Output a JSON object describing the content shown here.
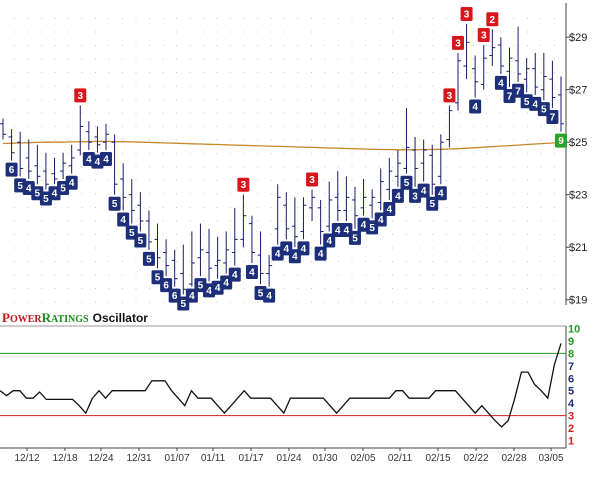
{
  "chart_data": {
    "type": "candlestick",
    "price_panel": {
      "y_ticks": [
        "$19",
        "$21",
        "$23",
        "$25",
        "$27",
        "$29"
      ],
      "ylim": [
        18.8,
        30.3
      ],
      "bars": [
        {
          "h": 25.9,
          "l": 25.1,
          "o": 25.7,
          "c": 25.3
        },
        {
          "h": 25.5,
          "l": 24.3,
          "o": 25.2,
          "c": 24.6,
          "label": "6",
          "kind": "down"
        },
        {
          "h": 25.4,
          "l": 23.7,
          "o": 25.0,
          "c": 24.0,
          "label": "5",
          "kind": "down"
        },
        {
          "h": 25.1,
          "l": 23.6,
          "o": 24.4,
          "c": 23.9,
          "label": "4",
          "kind": "down"
        },
        {
          "h": 24.9,
          "l": 23.4,
          "o": 24.1,
          "c": 23.7,
          "label": "5",
          "kind": "down"
        },
        {
          "h": 24.6,
          "l": 23.2,
          "o": 23.9,
          "c": 23.4,
          "label": "5",
          "kind": "down"
        },
        {
          "h": 24.4,
          "l": 23.4,
          "o": 23.8,
          "c": 23.6,
          "label": "4",
          "kind": "down"
        },
        {
          "h": 24.6,
          "l": 23.6,
          "o": 23.9,
          "c": 24.2,
          "label": "5",
          "kind": "down"
        },
        {
          "h": 24.9,
          "l": 23.8,
          "o": 24.1,
          "c": 24.4,
          "label": "4",
          "kind": "down"
        },
        {
          "h": 26.4,
          "l": 24.5,
          "o": 24.7,
          "c": 25.6,
          "label": "3",
          "kind": "up"
        },
        {
          "h": 25.8,
          "l": 24.7,
          "o": 25.4,
          "c": 25.0,
          "label": "4",
          "kind": "down"
        },
        {
          "h": 25.6,
          "l": 24.6,
          "o": 25.2,
          "c": 24.9,
          "label": "4",
          "kind": "down"
        },
        {
          "h": 25.7,
          "l": 24.7,
          "o": 25.0,
          "c": 25.3,
          "label": "4",
          "kind": "down"
        },
        {
          "h": 25.3,
          "l": 23.0,
          "o": 25.0,
          "c": 23.4,
          "label": "5",
          "kind": "down"
        },
        {
          "h": 24.2,
          "l": 22.4,
          "o": 23.6,
          "c": 22.9,
          "label": "4",
          "kind": "down"
        },
        {
          "h": 23.6,
          "l": 21.9,
          "o": 23.0,
          "c": 22.4,
          "label": "5",
          "kind": "down"
        },
        {
          "h": 23.1,
          "l": 21.6,
          "o": 22.6,
          "c": 22.0,
          "label": "5",
          "kind": "down"
        },
        {
          "h": 22.4,
          "l": 20.9,
          "o": 22.0,
          "c": 21.2,
          "label": "5",
          "kind": "down"
        },
        {
          "h": 21.9,
          "l": 20.2,
          "o": 21.3,
          "c": 20.6,
          "label": "5",
          "kind": "down"
        },
        {
          "h": 21.3,
          "l": 19.9,
          "o": 20.8,
          "c": 20.3,
          "label": "6",
          "kind": "down"
        },
        {
          "h": 20.9,
          "l": 19.5,
          "o": 20.5,
          "c": 19.8,
          "label": "6",
          "kind": "down"
        },
        {
          "h": 21.1,
          "l": 19.2,
          "o": 20.0,
          "c": 19.4,
          "label": "5",
          "kind": "down"
        },
        {
          "h": 21.6,
          "l": 19.5,
          "o": 19.6,
          "c": 20.4,
          "label": "4",
          "kind": "down"
        },
        {
          "h": 21.9,
          "l": 19.9,
          "o": 20.6,
          "c": 20.9,
          "label": "5",
          "kind": "down"
        },
        {
          "h": 21.7,
          "l": 19.7,
          "o": 20.8,
          "c": 20.2,
          "label": "4",
          "kind": "down"
        },
        {
          "h": 21.4,
          "l": 19.8,
          "o": 20.3,
          "c": 20.5,
          "label": "4",
          "kind": "down"
        },
        {
          "h": 21.6,
          "l": 20.0,
          "o": 20.4,
          "c": 20.9,
          "label": "4",
          "kind": "down"
        },
        {
          "h": 22.5,
          "l": 20.3,
          "o": 20.8,
          "c": 21.3,
          "label": "4",
          "kind": "down"
        },
        {
          "h": 23.0,
          "l": 21.0,
          "o": 21.3,
          "c": 22.2,
          "label": "3",
          "kind": "up"
        },
        {
          "h": 22.2,
          "l": 20.4,
          "o": 21.9,
          "c": 20.8,
          "label": "4",
          "kind": "down"
        },
        {
          "h": 21.6,
          "l": 19.6,
          "o": 20.7,
          "c": 20.0,
          "label": "5",
          "kind": "down"
        },
        {
          "h": 20.7,
          "l": 19.5,
          "o": 20.0,
          "c": 20.3,
          "label": "4",
          "kind": "down"
        },
        {
          "h": 23.4,
          "l": 21.1,
          "o": 21.7,
          "c": 22.9,
          "label": "4",
          "kind": "down"
        },
        {
          "h": 23.1,
          "l": 21.3,
          "o": 22.6,
          "c": 21.7,
          "label": "4",
          "kind": "down"
        },
        {
          "h": 22.9,
          "l": 21.0,
          "o": 21.8,
          "c": 21.4,
          "label": "4",
          "kind": "down"
        },
        {
          "h": 22.9,
          "l": 21.3,
          "o": 21.6,
          "c": 22.6,
          "label": "4",
          "kind": "down"
        },
        {
          "h": 23.2,
          "l": 22.0,
          "o": 22.5,
          "c": 22.9,
          "label": "3",
          "kind": "up"
        },
        {
          "h": 22.8,
          "l": 21.1,
          "o": 22.5,
          "c": 21.6,
          "label": "4",
          "kind": "down"
        },
        {
          "h": 23.5,
          "l": 21.6,
          "o": 21.8,
          "c": 22.8,
          "label": "4",
          "kind": "down"
        },
        {
          "h": 23.9,
          "l": 22.0,
          "o": 22.9,
          "c": 22.4,
          "label": "4",
          "kind": "down"
        },
        {
          "h": 23.7,
          "l": 22.0,
          "o": 22.4,
          "c": 22.9,
          "label": "4",
          "kind": "down"
        },
        {
          "h": 23.3,
          "l": 21.7,
          "o": 22.8,
          "c": 22.2,
          "label": "5",
          "kind": "down"
        },
        {
          "h": 23.6,
          "l": 22.2,
          "o": 22.5,
          "c": 22.9,
          "label": "4",
          "kind": "down"
        },
        {
          "h": 23.2,
          "l": 22.1,
          "o": 22.6,
          "c": 22.9,
          "label": "5",
          "kind": "down"
        },
        {
          "h": 24.0,
          "l": 22.4,
          "o": 22.7,
          "c": 23.5,
          "label": "4",
          "kind": "down"
        },
        {
          "h": 24.4,
          "l": 22.8,
          "o": 23.2,
          "c": 23.9,
          "label": "4",
          "kind": "down"
        },
        {
          "h": 24.7,
          "l": 23.3,
          "o": 23.7,
          "c": 24.2,
          "label": "4",
          "kind": "down"
        },
        {
          "h": 26.3,
          "l": 23.8,
          "o": 24.0,
          "c": 24.8,
          "label": "5",
          "kind": "down"
        },
        {
          "h": 25.2,
          "l": 23.3,
          "o": 24.7,
          "c": 24.0,
          "label": "3",
          "kind": "down"
        },
        {
          "h": 25.1,
          "l": 23.5,
          "o": 24.2,
          "c": 24.7,
          "label": "4",
          "kind": "down"
        },
        {
          "h": 24.9,
          "l": 23.0,
          "o": 24.5,
          "c": 23.4,
          "label": "5",
          "kind": "down"
        },
        {
          "h": 25.3,
          "l": 23.4,
          "o": 23.7,
          "c": 25.0,
          "label": "4",
          "kind": "down"
        },
        {
          "h": 26.4,
          "l": 24.8,
          "o": 25.1,
          "c": 26.2,
          "label": "3",
          "kind": "up"
        },
        {
          "h": 28.4,
          "l": 26.2,
          "o": 26.5,
          "c": 28.1,
          "label": "3",
          "kind": "up"
        },
        {
          "h": 29.5,
          "l": 27.4,
          "o": 27.9,
          "c": 28.8,
          "label": "3",
          "kind": "up"
        },
        {
          "h": 28.3,
          "l": 26.7,
          "o": 27.8,
          "c": 27.3,
          "label": "4",
          "kind": "down"
        },
        {
          "h": 28.7,
          "l": 27.0,
          "o": 27.2,
          "c": 28.2,
          "label": "3",
          "kind": "up"
        },
        {
          "h": 29.3,
          "l": 27.9,
          "o": 28.3,
          "c": 28.6,
          "label": "2",
          "kind": "up"
        },
        {
          "h": 29.0,
          "l": 27.6,
          "o": 28.7,
          "c": 27.9,
          "label": "4",
          "kind": "down"
        },
        {
          "h": 28.6,
          "l": 27.1,
          "o": 27.7,
          "c": 28.2,
          "label": "7",
          "kind": "down"
        },
        {
          "h": 29.4,
          "l": 27.3,
          "o": 28.1,
          "c": 27.6,
          "label": "7",
          "kind": "down"
        },
        {
          "h": 28.2,
          "l": 26.9,
          "o": 27.4,
          "c": 27.8,
          "label": "5",
          "kind": "down"
        },
        {
          "h": 28.4,
          "l": 26.8,
          "o": 27.8,
          "c": 27.1,
          "label": "4",
          "kind": "down"
        },
        {
          "h": 28.4,
          "l": 26.6,
          "o": 27.0,
          "c": 27.5,
          "label": "5",
          "kind": "down"
        },
        {
          "h": 28.1,
          "l": 26.3,
          "o": 27.4,
          "c": 26.7,
          "label": "7",
          "kind": "down"
        },
        {
          "h": 27.5,
          "l": 25.4,
          "o": 26.8,
          "c": 25.7,
          "label": "9",
          "kind": "green"
        }
      ],
      "moving_average": [
        24.95,
        24.96,
        24.97,
        24.98,
        24.99,
        25.0,
        25.0,
        25.0,
        25.01,
        25.02,
        25.02,
        25.03,
        25.03,
        25.02,
        25.02,
        25.01,
        25.0,
        24.99,
        24.98,
        24.97,
        24.96,
        24.95,
        24.94,
        24.93,
        24.92,
        24.91,
        24.9,
        24.89,
        24.88,
        24.87,
        24.86,
        24.85,
        24.84,
        24.83,
        24.82,
        24.81,
        24.8,
        24.79,
        24.78,
        24.77,
        24.76,
        24.75,
        24.74,
        24.73,
        24.72,
        24.72,
        24.71,
        24.71,
        24.71,
        24.72,
        24.72,
        24.73,
        24.74,
        24.75,
        24.77,
        24.79,
        24.81,
        24.83,
        24.85,
        24.87,
        24.89,
        24.91,
        24.93,
        24.95,
        24.97,
        24.99
      ]
    },
    "oscillator_panel": {
      "title_prefix_p": "P",
      "title_prefix_ower": "OWER",
      "title_prefix_r": "R",
      "title_prefix_atings": "ATINGS",
      "title_rest": "Oscillator",
      "ylim": [
        0.4,
        10.2
      ],
      "y_labels": [
        "10",
        "9",
        "8",
        "7",
        "6",
        "5",
        "4",
        "3",
        "2",
        "1"
      ],
      "upper_line": 8,
      "lower_line": 3,
      "values": [
        5,
        4.6,
        5,
        5,
        4.4,
        4.4,
        4.9,
        4.3,
        4.3,
        4.3,
        4.3,
        4.3,
        3.8,
        3.2,
        4.4,
        5,
        4.4,
        5,
        5,
        5,
        5,
        5,
        5,
        5.8,
        5.8,
        5.8,
        5,
        4.4,
        3.8,
        5,
        4.4,
        4.4,
        4.4,
        3.8,
        3.2,
        3.8,
        4.4,
        5,
        4.4,
        4.4,
        4.4,
        4.4,
        3.8,
        3.2,
        4.4,
        4.4,
        4.4,
        4.4,
        4.4,
        4.4,
        3.8,
        3.2,
        3.8,
        4.4,
        4.4,
        4.4,
        4.4,
        4.4,
        4.4,
        4.4,
        5,
        5,
        4.4,
        4.4,
        4.4,
        4.4,
        5,
        5,
        5,
        5,
        4.4,
        3.8,
        3.2,
        3.8,
        3.2,
        2.6,
        2.1,
        2.6,
        4.4,
        6.5,
        6.5,
        5.5,
        5,
        4.4,
        7.1,
        8.8
      ]
    },
    "x_labels": [
      "12/12",
      "12/18",
      "12/24",
      "12/31",
      "01/07",
      "01/11",
      "01/17",
      "01/24",
      "01/30",
      "02/05",
      "02/11",
      "02/15",
      "02/22",
      "02/28",
      "03/05"
    ],
    "colors": {
      "bar": "#1a1a6e",
      "down_badge": "#1c2f78",
      "up_badge": "#d8171c",
      "green_badge": "#2aa52c",
      "moving_average": "#c8882a",
      "oscillator_line": "#111111",
      "upper_line": "#1f9a1f",
      "lower_line": "#d02020",
      "brand_p": "#c0141a",
      "brand_r": "#1a8a1a"
    }
  }
}
